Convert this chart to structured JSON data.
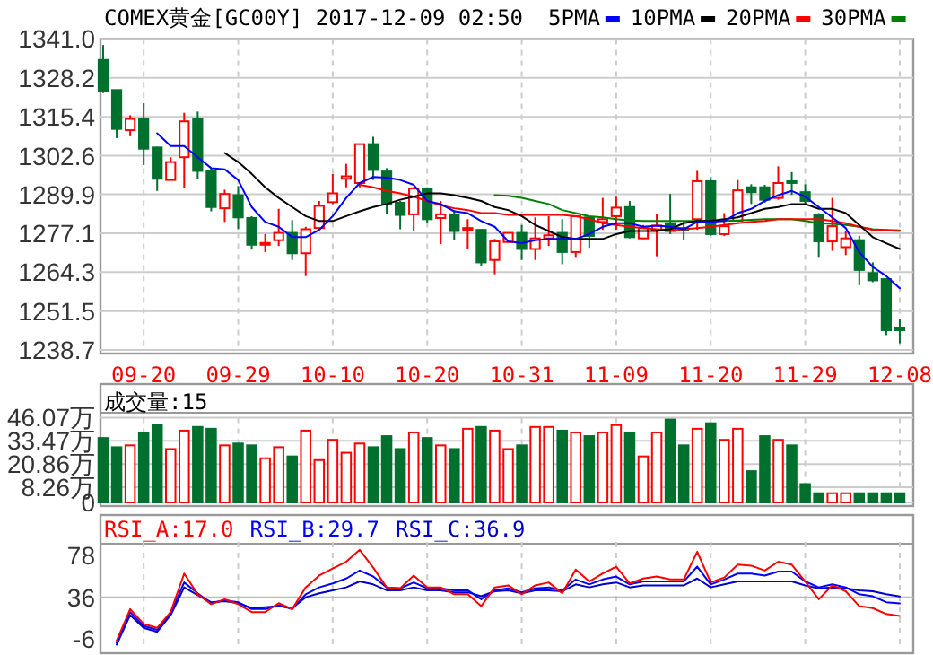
{
  "chart_data": [
    {
      "type": "candlestick",
      "title": "COMEX黄金[GC00Y] 2017-12-09 02:50",
      "legend": "top",
      "grid": true,
      "categories": [
        null,
        null,
        null,
        "09-20",
        null,
        null,
        null,
        null,
        null,
        null,
        "09-29",
        null,
        null,
        null,
        null,
        null,
        null,
        "10-10",
        null,
        null,
        null,
        null,
        null,
        null,
        "10-20",
        null,
        null,
        null,
        null,
        null,
        null,
        "10-31",
        null,
        null,
        null,
        null,
        null,
        null,
        "11-09",
        null,
        null,
        null,
        null,
        null,
        null,
        "11-20",
        null,
        null,
        null,
        null,
        null,
        null,
        "11-29",
        null,
        null,
        null,
        null,
        null,
        null,
        "12-08"
      ],
      "ylim": [
        1238.7,
        1341.0
      ],
      "yticks": [
        {
          "value": 1238.7,
          "label": "1238.7"
        },
        {
          "value": 1251.5,
          "label": "1251.5"
        },
        {
          "value": 1264.3,
          "label": "1264.3"
        },
        {
          "value": 1277.1,
          "label": "1277.1"
        },
        {
          "value": 1289.9,
          "label": "1289.9"
        },
        {
          "value": 1302.6,
          "label": "1302.6"
        },
        {
          "value": 1315.4,
          "label": "1315.4"
        },
        {
          "value": 1328.2,
          "label": "1328.2"
        },
        {
          "value": 1341.0,
          "label": "1341.0"
        }
      ],
      "ohlc": [
        [
          1334.1,
          1339.0,
          1323.2,
          1323.8
        ],
        [
          1324.2,
          1324.2,
          1308.4,
          1311.4
        ],
        [
          1311.0,
          1315.9,
          1309.0,
          1314.7
        ],
        [
          1314.7,
          1319.9,
          1299.5,
          1304.9
        ],
        [
          1305.3,
          1305.5,
          1291.0,
          1295.0
        ],
        [
          1294.6,
          1302.1,
          1294.6,
          1300.5
        ],
        [
          1302.1,
          1316.7,
          1292.0,
          1313.9
        ],
        [
          1314.7,
          1317.1,
          1295.0,
          1297.6
        ],
        [
          1297.6,
          1298.5,
          1284.3,
          1285.7
        ],
        [
          1285.3,
          1291.4,
          1280.8,
          1290.0
        ],
        [
          1289.6,
          1292.6,
          1278.4,
          1282.3
        ],
        [
          1282.1,
          1282.7,
          1271.7,
          1273.3
        ],
        [
          1273.3,
          1276.8,
          1270.9,
          1273.9
        ],
        [
          1274.8,
          1285.1,
          1272.9,
          1277.2
        ],
        [
          1277.2,
          1281.4,
          1268.3,
          1270.5
        ],
        [
          1270.5,
          1279.2,
          1263.0,
          1278.4
        ],
        [
          1278.8,
          1287.7,
          1278.2,
          1286.1
        ],
        [
          1287.3,
          1296.6,
          1286.7,
          1290.2
        ],
        [
          1295.0,
          1299.9,
          1292.2,
          1295.8
        ],
        [
          1293.6,
          1306.4,
          1292.2,
          1306.4
        ],
        [
          1306.4,
          1308.8,
          1294.6,
          1297.9
        ],
        [
          1297.4,
          1298.5,
          1283.3,
          1286.7
        ],
        [
          1287.1,
          1287.7,
          1278.4,
          1283.1
        ],
        [
          1283.3,
          1292.2,
          1277.8,
          1291.8
        ],
        [
          1291.8,
          1292.2,
          1280.4,
          1281.7
        ],
        [
          1282.1,
          1287.7,
          1273.5,
          1283.3
        ],
        [
          1283.3,
          1284.7,
          1274.8,
          1277.8
        ],
        [
          1278.4,
          1281.7,
          1271.9,
          1278.8
        ],
        [
          1278.2,
          1278.4,
          1266.3,
          1267.5
        ],
        [
          1268.3,
          1275.2,
          1263.6,
          1274.4
        ],
        [
          1274.2,
          1277.2,
          1274.0,
          1277.2
        ],
        [
          1277.2,
          1279.8,
          1268.3,
          1271.9
        ],
        [
          1271.9,
          1282.3,
          1268.3,
          1275.4
        ],
        [
          1275.4,
          1282.7,
          1272.9,
          1276.4
        ],
        [
          1277.2,
          1281.7,
          1266.9,
          1270.9
        ],
        [
          1270.9,
          1282.7,
          1269.3,
          1282.7
        ],
        [
          1282.3,
          1282.7,
          1272.3,
          1276.2
        ],
        [
          1280.8,
          1288.7,
          1278.2,
          1281.7
        ],
        [
          1282.7,
          1289.1,
          1278.2,
          1285.5
        ],
        [
          1285.7,
          1287.7,
          1275.4,
          1275.8
        ],
        [
          1275.4,
          1279.8,
          1275.2,
          1278.8
        ],
        [
          1278.2,
          1283.5,
          1269.5,
          1279.6
        ],
        [
          1280.4,
          1290.0,
          1276.8,
          1277.8
        ],
        [
          1278.8,
          1281.2,
          1274.8,
          1278.2
        ],
        [
          1281.7,
          1297.6,
          1278.2,
          1294.2
        ],
        [
          1294.2,
          1295.6,
          1276.2,
          1276.8
        ],
        [
          1276.8,
          1283.7,
          1276.2,
          1279.4
        ],
        [
          1281.2,
          1294.6,
          1280.8,
          1291.2
        ],
        [
          1292.2,
          1293.2,
          1286.7,
          1290.6
        ],
        [
          1292.2,
          1293.0,
          1287.1,
          1288.1
        ],
        [
          1288.7,
          1299.1,
          1288.1,
          1293.6
        ],
        [
          1294.2,
          1297.2,
          1289.7,
          1294.0
        ],
        [
          1290.6,
          1293.2,
          1286.7,
          1287.7
        ],
        [
          1283.1,
          1283.7,
          1269.3,
          1274.4
        ],
        [
          1274.4,
          1288.7,
          1271.3,
          1279.4
        ],
        [
          1272.5,
          1277.8,
          1269.9,
          1275.4
        ],
        [
          1274.8,
          1276.2,
          1260.0,
          1265.0
        ],
        [
          1264.0,
          1267.5,
          1261.0,
          1261.6
        ],
        [
          1262.0,
          1262.0,
          1243.6,
          1245.2
        ],
        [
          1245.8,
          1248.8,
          1240.9,
          1245.2
        ]
      ],
      "series": [
        {
          "name": "5PMA",
          "type": "line",
          "color": "#0000ff",
          "values": [
            null,
            null,
            null,
            null,
            1310.0,
            1305.8,
            1305.8,
            1302.1,
            1298.5,
            1298.1,
            1294.6,
            1285.7,
            1280.8,
            1279.2,
            1275.8,
            1275.8,
            1278.2,
            1282.7,
            1288.7,
            1293.6,
            1295.6,
            1295.4,
            1294.6,
            1293.0,
            1287.7,
            1286.7,
            1284.3,
            1283.7,
            1281.1,
            1279.2,
            1274.4,
            1273.8,
            1274.8,
            1275.2,
            1275.2,
            1275.2,
            1276.8,
            1279.2,
            1280.4,
            1280.4,
            1279.2,
            1279.6,
            1279.2,
            1278.4,
            1280.8,
            1280.8,
            1281.1,
            1283.7,
            1285.1,
            1287.7,
            1289.6,
            1291.0,
            1289.1,
            1285.7,
            1282.3,
            1278.8,
            1270.9,
            1266.0,
            1263.0,
            1259.0
          ]
        },
        {
          "name": "10PMA",
          "type": "line",
          "color": "#000000",
          "values": [
            null,
            null,
            null,
            null,
            null,
            null,
            null,
            null,
            null,
            1303.5,
            1300.5,
            1296.6,
            1292.2,
            1288.7,
            1285.7,
            1282.7,
            1281.1,
            1281.1,
            1282.7,
            1284.3,
            1285.7,
            1286.7,
            1288.1,
            1289.1,
            1290.2,
            1290.2,
            1289.6,
            1288.7,
            1287.7,
            1285.7,
            1284.7,
            1282.7,
            1279.8,
            1277.8,
            1275.8,
            1275.2,
            1275.2,
            1275.2,
            1276.8,
            1277.8,
            1277.8,
            1277.8,
            1278.4,
            1280.4,
            1281.1,
            1281.1,
            1281.7,
            1282.3,
            1283.7,
            1285.1,
            1285.7,
            1286.7,
            1286.7,
            1285.1,
            1285.1,
            1283.7,
            1279.8,
            1275.8,
            1273.8,
            1271.9
          ]
        },
        {
          "name": "20PMA",
          "type": "line",
          "color": "#ff0000",
          "values": [
            null,
            null,
            null,
            null,
            null,
            null,
            null,
            null,
            null,
            null,
            null,
            null,
            null,
            null,
            null,
            null,
            null,
            null,
            null,
            1293.0,
            1292.2,
            1291.0,
            1290.2,
            1289.1,
            1287.7,
            1286.3,
            1285.3,
            1284.7,
            1283.7,
            1283.7,
            1283.1,
            1283.1,
            1283.1,
            1283.1,
            1283.1,
            1282.7,
            1281.7,
            1280.4,
            1279.8,
            1279.2,
            1278.8,
            1278.4,
            1278.2,
            1278.4,
            1278.8,
            1279.2,
            1279.8,
            1280.4,
            1280.8,
            1281.1,
            1281.7,
            1281.7,
            1281.7,
            1281.7,
            1281.1,
            1280.4,
            1279.2,
            1278.2,
            1278.0,
            1277.8
          ]
        },
        {
          "name": "30PMA",
          "type": "line",
          "color": "#008000",
          "values": [
            null,
            null,
            null,
            null,
            null,
            null,
            null,
            null,
            null,
            null,
            null,
            null,
            null,
            null,
            null,
            null,
            null,
            null,
            null,
            null,
            null,
            null,
            null,
            null,
            null,
            null,
            null,
            null,
            null,
            1289.6,
            1289.4,
            1288.7,
            1287.7,
            1286.7,
            1284.7,
            1283.7,
            1282.7,
            1282.3,
            1281.7,
            1281.3,
            1281.1,
            1281.1,
            1281.1,
            1281.1,
            1281.1,
            1281.1,
            1281.1,
            1281.3,
            1281.5,
            1281.7,
            1281.7,
            1281.7,
            1281.1,
            1280.4,
            1280.2,
            1279.8,
            1279.2,
            1278.4,
            1278.2,
            1278.0
          ]
        }
      ]
    },
    {
      "type": "bar",
      "title": "成交量:15",
      "grid": true,
      "categories": [
        null,
        null,
        null,
        null,
        null,
        null,
        null,
        null,
        null,
        null,
        null,
        null,
        null,
        null,
        null,
        null,
        null,
        null,
        null,
        null,
        null,
        null,
        null,
        null,
        null,
        null,
        null,
        null,
        null,
        null,
        null,
        null,
        null,
        null,
        null,
        null,
        null,
        null,
        null,
        null,
        null,
        null,
        null,
        null,
        null,
        null,
        null,
        null,
        null,
        null,
        null,
        null,
        null,
        null,
        null,
        null,
        null,
        null,
        null,
        null
      ],
      "ylim": [
        0,
        46.07
      ],
      "yticks": [
        0,
        {
          "value": 8.26,
          "label": "8.26万"
        },
        {
          "value": 20.86,
          "label": "20.86万"
        },
        {
          "value": 33.47,
          "label": "33.47万"
        },
        {
          "value": 46.07,
          "label": "46.07万"
        }
      ],
      "values": [
        35,
        30,
        31,
        38,
        42,
        29,
        39,
        41,
        40,
        31,
        32,
        31,
        24,
        30,
        25,
        39,
        23,
        34,
        27,
        32,
        30,
        36,
        29,
        38,
        35,
        31,
        29,
        40,
        41,
        39,
        29,
        31,
        41,
        41,
        39,
        38,
        36,
        38,
        42,
        38,
        25,
        38,
        45,
        31,
        40,
        43,
        34,
        40,
        17,
        36,
        34,
        31,
        10,
        5,
        5,
        5,
        5,
        5,
        5,
        5
      ],
      "colors": [
        "#00702e",
        "#00702e",
        "#ff0000",
        "#00702e",
        "#00702e",
        "#ff0000",
        "#ff0000",
        "#00702e",
        "#00702e",
        "#ff0000",
        "#00702e",
        "#00702e",
        "#ff0000",
        "#ff0000",
        "#00702e",
        "#ff0000",
        "#ff0000",
        "#ff0000",
        "#ff0000",
        "#ff0000",
        "#00702e",
        "#00702e",
        "#00702e",
        "#ff0000",
        "#00702e",
        "#ff0000",
        "#00702e",
        "#ff0000",
        "#00702e",
        "#ff0000",
        "#ff0000",
        "#00702e",
        "#ff0000",
        "#ff0000",
        "#00702e",
        "#ff0000",
        "#00702e",
        "#ff0000",
        "#ff0000",
        "#00702e",
        "#ff0000",
        "#ff0000",
        "#00702e",
        "#00702e",
        "#ff0000",
        "#00702e",
        "#ff0000",
        "#ff0000",
        "#00702e",
        "#00702e",
        "#ff0000",
        "#00702e",
        "#00702e",
        "#00702e",
        "#ff0000",
        "#ff0000",
        "#00702e",
        "#00702e",
        "#00702e",
        "#00702e"
      ]
    },
    {
      "type": "line",
      "legend": "top",
      "grid": "x",
      "categories": [
        null,
        null,
        null,
        null,
        null,
        null,
        null,
        null,
        null,
        null,
        null,
        null,
        null,
        null,
        null,
        null,
        null,
        null,
        null,
        null,
        null,
        null,
        null,
        null,
        null,
        null,
        null,
        null,
        null,
        null,
        null,
        null,
        null,
        null,
        null,
        null,
        null,
        null,
        null,
        null,
        null,
        null,
        null,
        null,
        null,
        null,
        null,
        null,
        null,
        null,
        null,
        null,
        null,
        null,
        null,
        null,
        null,
        null,
        null,
        null
      ],
      "ylim": [
        -17,
        92
      ],
      "yticks": [
        -6,
        36,
        78
      ],
      "ref_lines": [
        {
          "axis": "y",
          "value": 36,
          "color": "#bbbbbb"
        }
      ],
      "series": [
        {
          "name": "RSI_A:17.0",
          "color": "#ff0000",
          "values": [
            null,
            -8,
            24,
            9,
            5,
            21,
            60,
            39,
            29,
            34,
            29,
            21,
            21,
            30,
            24,
            46,
            58,
            65,
            72,
            84,
            66,
            46,
            45,
            58,
            46,
            46,
            39,
            39,
            27,
            46,
            48,
            39,
            48,
            51,
            40,
            64,
            52,
            60,
            67,
            50,
            55,
            57,
            54,
            54,
            82,
            51,
            56,
            69,
            68,
            63,
            72,
            69,
            52,
            34,
            48,
            42,
            27,
            25,
            19,
            17.0
          ]
        },
        {
          "name": "RSI_B:29.7",
          "color": "#0000ff",
          "values": [
            null,
            -10,
            21,
            7,
            3,
            20,
            51,
            40,
            30,
            33,
            31,
            24,
            24,
            28,
            24,
            39,
            46,
            50,
            55,
            63,
            57,
            46,
            45,
            51,
            45,
            45,
            43,
            43,
            34,
            43,
            45,
            41,
            45,
            46,
            43,
            54,
            49,
            54,
            57,
            49,
            52,
            52,
            52,
            52,
            67,
            49,
            54,
            60,
            60,
            58,
            62,
            62,
            52,
            46,
            49,
            46,
            39,
            37,
            31,
            29.7
          ]
        },
        {
          "name": "RSI_C:36.9",
          "color": "#0000cc",
          "values": [
            null,
            -12,
            18,
            5,
            1,
            18,
            46,
            38,
            31,
            32,
            30,
            25,
            26,
            27,
            25,
            36,
            40,
            43,
            46,
            52,
            49,
            43,
            43,
            46,
            43,
            43,
            41,
            41,
            37,
            42,
            43,
            40,
            43,
            43,
            42,
            49,
            46,
            49,
            51,
            46,
            48,
            48,
            48,
            48,
            55,
            46,
            49,
            52,
            52,
            52,
            52,
            52,
            48,
            45,
            46,
            45,
            43,
            42,
            39,
            36.9
          ]
        }
      ]
    }
  ]
}
